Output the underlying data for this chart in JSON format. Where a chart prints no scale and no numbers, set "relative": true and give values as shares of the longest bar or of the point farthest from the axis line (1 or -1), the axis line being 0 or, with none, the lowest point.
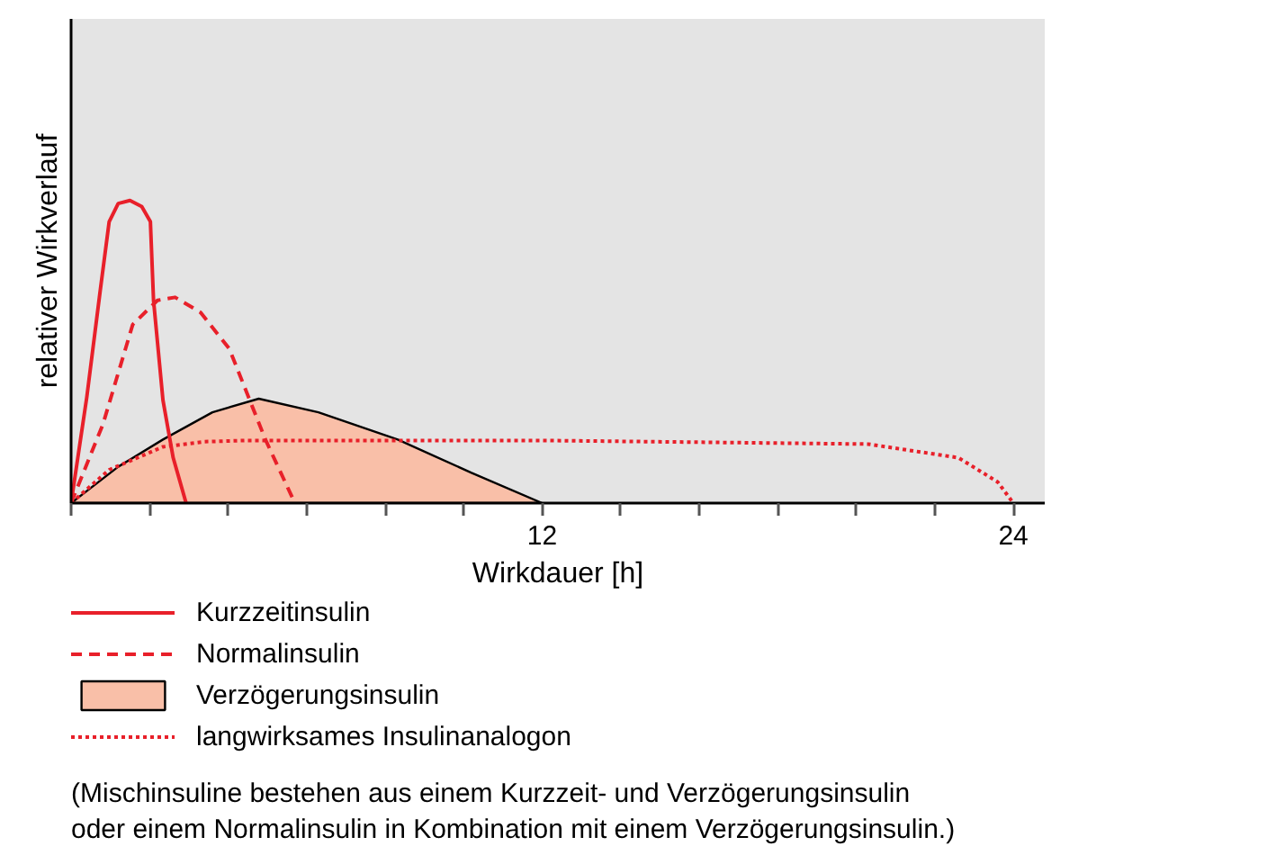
{
  "chart_data": {
    "type": "line",
    "relative": true,
    "xlabel": "Wirkdauer [h]",
    "ylabel": "relativer Wirkverlauf",
    "xlim": [
      0,
      24.8
    ],
    "xticks": [
      {
        "value": 0,
        "label": null
      },
      {
        "value": 2,
        "label": null
      },
      {
        "value": 4,
        "label": null
      },
      {
        "value": 6,
        "label": null
      },
      {
        "value": 8,
        "label": null
      },
      {
        "value": 10,
        "label": null
      },
      12,
      {
        "value": 14,
        "label": null
      },
      {
        "value": 16,
        "label": null
      },
      {
        "value": 18,
        "label": null
      },
      {
        "value": 20,
        "label": null
      },
      {
        "value": 22,
        "label": null
      },
      24
    ],
    "legend": "bottom",
    "series": [
      {
        "name": "Kurzzeitinsulin",
        "color": "#e8202a",
        "line_style": "solid",
        "x": [
          0,
          0.4,
          0.74,
          0.97,
          1.2,
          1.5,
          1.8,
          2.02,
          2.1,
          2.34,
          2.6,
          2.93
        ],
        "values": [
          0,
          0.35,
          0.7,
          0.93,
          0.99,
          1.0,
          0.98,
          0.93,
          0.67,
          0.34,
          0.15,
          0
        ]
      },
      {
        "name": "Normalinsulin",
        "color": "#e8202a",
        "line_style": "dashed",
        "x": [
          0,
          0.81,
          1.57,
          2.2,
          2.65,
          3.3,
          4.03,
          4.95,
          5.7
        ],
        "values": [
          0,
          0.26,
          0.59,
          0.67,
          0.68,
          0.63,
          0.51,
          0.21,
          0
        ]
      },
      {
        "name": "Verzögerungsinsulin",
        "type": "area",
        "color": "#f9bfa8",
        "x": [
          0,
          1.2,
          2.34,
          3.6,
          4.78,
          6.3,
          8.32,
          10.2,
          12
        ],
        "values": [
          0,
          0.12,
          0.21,
          0.3,
          0.345,
          0.3,
          0.21,
          0.1,
          0
        ]
      },
      {
        "name": "langwirksames Insulinanalogon",
        "color": "#e8202a",
        "line_style": "dotted",
        "x": [
          0,
          0.97,
          2.34,
          3.4,
          4.5,
          12,
          20.3,
          22.6,
          23.6,
          24
        ],
        "values": [
          0,
          0.11,
          0.186,
          0.203,
          0.207,
          0.207,
          0.195,
          0.15,
          0.07,
          0
        ]
      }
    ],
    "annotations": [
      "(Mischinsuline bestehen aus einem Kurzzeit- und Verzögerungsinsulin\noder einem Normalinsulin in Kombination mit einem Verzögerungsinsulin.)"
    ]
  }
}
